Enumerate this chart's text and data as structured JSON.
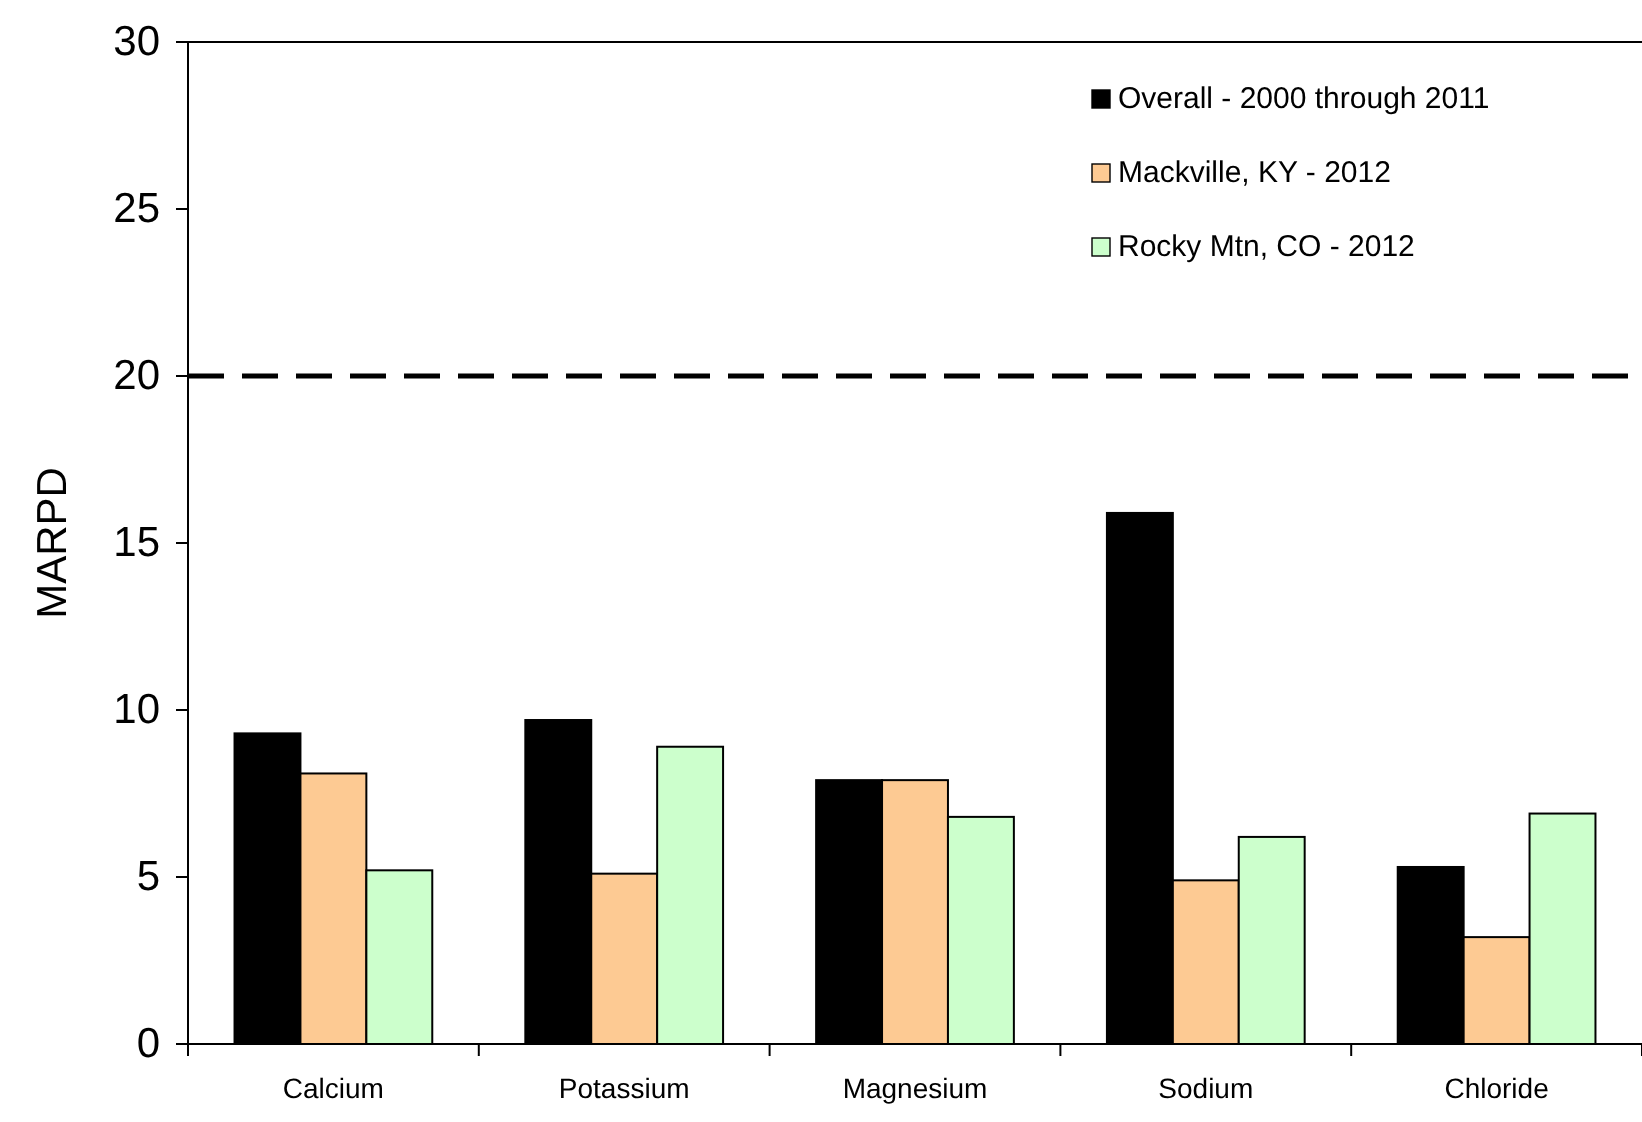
{
  "chart_data": {
    "type": "bar",
    "ylabel": "MARPD",
    "categories": [
      "Calcium",
      "Potassium",
      "Magnesium",
      "Sodium",
      "Chloride"
    ],
    "series": [
      {
        "name": "Overall - 2000 through 2011",
        "color": "#000000",
        "values": [
          9.3,
          9.7,
          7.9,
          15.9,
          5.3
        ]
      },
      {
        "name": "Mackville, KY - 2012",
        "color": "#fdca93",
        "values": [
          8.1,
          5.1,
          7.9,
          4.9,
          3.2
        ]
      },
      {
        "name": "Rocky Mtn, CO - 2012",
        "color": "#ccffcc",
        "values": [
          5.2,
          8.9,
          6.8,
          6.2,
          6.9
        ]
      }
    ],
    "ylim": [
      0,
      30
    ],
    "yticks": [
      0,
      5,
      10,
      15,
      20,
      25,
      30
    ],
    "grid": false,
    "legend": "top right",
    "ref_lines": [
      {
        "axis": "y",
        "value": 20,
        "color": "#000000",
        "line_style": "dashed"
      }
    ]
  }
}
